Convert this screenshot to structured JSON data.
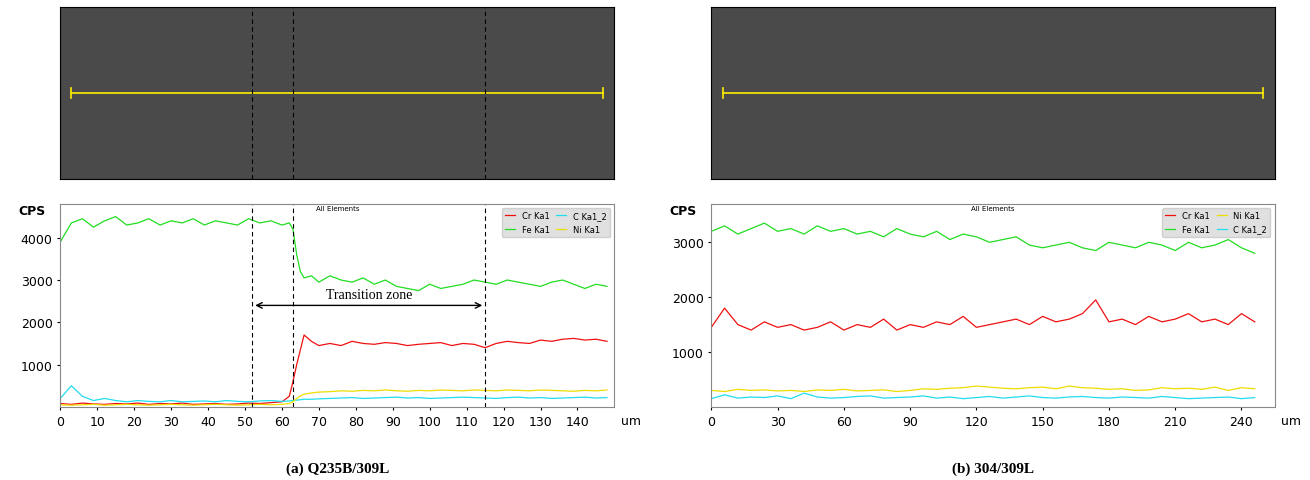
{
  "chart_data": [
    {
      "type": "line",
      "caption": "(a) Q235B/309L",
      "title": "All Elements",
      "y_label": "CPS",
      "x_unit_label": "um",
      "legend": "upper right",
      "xlim": [
        0,
        150
      ],
      "ylim": [
        0,
        4800
      ],
      "xticks": [
        0,
        10,
        20,
        30,
        40,
        50,
        60,
        70,
        80,
        90,
        100,
        110,
        120,
        130,
        140
      ],
      "yticks": [
        1000,
        2000,
        3000,
        4000
      ],
      "dashed_lines": [
        52,
        63,
        115
      ],
      "annotations": [
        {
          "text": "Transition zone",
          "start": 52,
          "end": 115
        }
      ],
      "x": [
        0,
        3,
        6,
        9,
        12,
        15,
        18,
        21,
        24,
        27,
        30,
        33,
        36,
        39,
        42,
        45,
        48,
        51,
        54,
        57,
        60,
        62,
        63,
        64,
        65,
        66,
        68,
        70,
        73,
        76,
        79,
        82,
        85,
        88,
        91,
        94,
        97,
        100,
        103,
        106,
        109,
        112,
        115,
        118,
        121,
        124,
        127,
        130,
        133,
        136,
        139,
        142,
        145,
        148
      ],
      "series": [
        {
          "name": "Cr Ka1",
          "color": "#ee1111",
          "values": [
            80,
            60,
            90,
            70,
            60,
            80,
            70,
            90,
            60,
            80,
            70,
            90,
            60,
            70,
            80,
            60,
            70,
            90,
            80,
            100,
            120,
            250,
            600,
            1000,
            1350,
            1700,
            1550,
            1450,
            1500,
            1450,
            1550,
            1500,
            1480,
            1520,
            1500,
            1450,
            1480,
            1500,
            1520,
            1450,
            1500,
            1480,
            1400,
            1500,
            1550,
            1520,
            1500,
            1580,
            1550,
            1600,
            1620,
            1580,
            1600,
            1550
          ]
        },
        {
          "name": "Fe Ka1",
          "color": "#22dd22",
          "values": [
            3900,
            4350,
            4450,
            4250,
            4400,
            4500,
            4300,
            4350,
            4450,
            4300,
            4400,
            4350,
            4450,
            4300,
            4400,
            4350,
            4300,
            4450,
            4350,
            4400,
            4300,
            4350,
            4200,
            3600,
            3200,
            3050,
            3100,
            2950,
            3100,
            3000,
            2950,
            3050,
            2900,
            3000,
            2850,
            2800,
            2750,
            2900,
            2800,
            2850,
            2900,
            3000,
            2950,
            2900,
            3000,
            2950,
            2900,
            2850,
            2950,
            3000,
            2900,
            2800,
            2900,
            2850
          ]
        },
        {
          "name": "C Ka1_2",
          "color": "#22ddee",
          "values": [
            200,
            500,
            250,
            150,
            200,
            150,
            120,
            150,
            130,
            120,
            150,
            120,
            130,
            140,
            120,
            150,
            130,
            120,
            140,
            150,
            130,
            140,
            150,
            160,
            170,
            180,
            180,
            190,
            200,
            210,
            220,
            200,
            210,
            220,
            230,
            210,
            220,
            200,
            210,
            220,
            230,
            220,
            210,
            200,
            220,
            230,
            210,
            220,
            200,
            210,
            220,
            230,
            210,
            220
          ]
        },
        {
          "name": "Ni Ka1",
          "color": "#eedd00",
          "values": [
            50,
            40,
            50,
            60,
            40,
            50,
            60,
            50,
            40,
            50,
            60,
            50,
            40,
            50,
            60,
            50,
            40,
            50,
            60,
            50,
            60,
            80,
            120,
            200,
            260,
            300,
            330,
            350,
            360,
            380,
            370,
            390,
            380,
            400,
            380,
            370,
            390,
            380,
            400,
            390,
            380,
            400,
            390,
            380,
            400,
            390,
            380,
            400,
            390,
            380,
            370,
            390,
            380,
            400
          ]
        }
      ]
    },
    {
      "type": "line",
      "caption": "(b) 304/309L",
      "title": "All Elements",
      "y_label": "CPS",
      "x_unit_label": "um",
      "legend": "upper right",
      "xlim": [
        0,
        255
      ],
      "ylim": [
        0,
        3700
      ],
      "xticks": [
        0,
        30,
        60,
        90,
        120,
        150,
        180,
        210,
        240
      ],
      "yticks": [
        1000,
        2000,
        3000
      ],
      "x": [
        0,
        6,
        12,
        18,
        24,
        30,
        36,
        42,
        48,
        54,
        60,
        66,
        72,
        78,
        84,
        90,
        96,
        102,
        108,
        114,
        120,
        126,
        132,
        138,
        144,
        150,
        156,
        162,
        168,
        174,
        180,
        186,
        192,
        198,
        204,
        210,
        216,
        222,
        228,
        234,
        240,
        246
      ],
      "series": [
        {
          "name": "Cr Ka1",
          "color": "#ee1111",
          "values": [
            1450,
            1800,
            1500,
            1400,
            1550,
            1450,
            1500,
            1400,
            1450,
            1550,
            1400,
            1500,
            1450,
            1600,
            1400,
            1500,
            1450,
            1550,
            1500,
            1650,
            1450,
            1500,
            1550,
            1600,
            1500,
            1650,
            1550,
            1600,
            1700,
            1950,
            1550,
            1600,
            1500,
            1650,
            1550,
            1600,
            1700,
            1550,
            1600,
            1500,
            1700,
            1550
          ]
        },
        {
          "name": "Fe Ka1",
          "color": "#22dd22",
          "values": [
            3200,
            3300,
            3150,
            3250,
            3350,
            3200,
            3250,
            3150,
            3300,
            3200,
            3250,
            3150,
            3200,
            3100,
            3250,
            3150,
            3100,
            3200,
            3050,
            3150,
            3100,
            3000,
            3050,
            3100,
            2950,
            2900,
            2950,
            3000,
            2900,
            2850,
            3000,
            2950,
            2900,
            3000,
            2950,
            2850,
            3000,
            2900,
            2950,
            3050,
            2900,
            2800
          ]
        },
        {
          "name": "Ni Ka1",
          "color": "#eedd00",
          "values": [
            300,
            280,
            320,
            300,
            310,
            290,
            300,
            280,
            310,
            300,
            320,
            290,
            300,
            310,
            280,
            300,
            330,
            320,
            340,
            350,
            380,
            360,
            340,
            330,
            350,
            360,
            330,
            380,
            350,
            340,
            320,
            330,
            300,
            310,
            350,
            330,
            340,
            320,
            360,
            300,
            350,
            330
          ]
        },
        {
          "name": "C Ka1_2",
          "color": "#22ddee",
          "values": [
            150,
            220,
            160,
            180,
            170,
            200,
            150,
            250,
            180,
            160,
            170,
            190,
            200,
            160,
            170,
            180,
            200,
            160,
            180,
            150,
            170,
            190,
            160,
            180,
            200,
            170,
            160,
            180,
            190,
            170,
            160,
            180,
            170,
            160,
            190,
            170,
            150,
            160,
            170,
            180,
            150,
            170
          ]
        }
      ]
    }
  ]
}
